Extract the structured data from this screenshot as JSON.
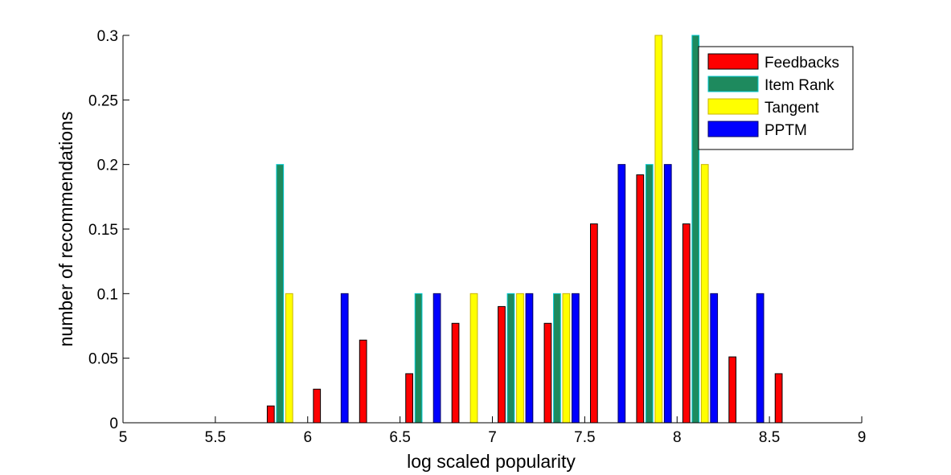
{
  "chart_data": {
    "type": "bar",
    "xlabel": "log scaled popularity",
    "ylabel": "number of recommendations",
    "xlim": [
      5,
      9
    ],
    "ylim": [
      0,
      0.3
    ],
    "x_ticks": [
      "5",
      "5.5",
      "6",
      "6.5",
      "7",
      "7.5",
      "8",
      "8.5",
      "9"
    ],
    "y_ticks": [
      "0",
      "0.05",
      "0.1",
      "0.15",
      "0.2",
      "0.25",
      "0.3"
    ],
    "grid": false,
    "legend_position": "top-right",
    "x": [
      5.125,
      5.375,
      5.625,
      5.875,
      6.125,
      6.375,
      6.625,
      6.875,
      7.125,
      7.375,
      7.625,
      7.875,
      8.125,
      8.375,
      8.625,
      8.875
    ],
    "series": [
      {
        "name": "Feedbacks",
        "color": "#ff0000",
        "edge": "#000000",
        "values": [
          0,
          0,
          0,
          0.013,
          0.026,
          0.064,
          0.038,
          0.077,
          0.09,
          0.077,
          0.154,
          0.192,
          0.154,
          0.051,
          0.038,
          0
        ]
      },
      {
        "name": "Item Rank",
        "color": "#1e8a5e",
        "edge": "#00c8d2",
        "values": [
          0,
          0,
          0,
          0.2,
          0,
          0,
          0.1,
          0,
          0.1,
          0.1,
          0,
          0.2,
          0.3,
          0,
          0,
          0
        ]
      },
      {
        "name": "Tangent",
        "color": "#ffff00",
        "edge": "#c8b400",
        "values": [
          0,
          0,
          0,
          0.1,
          0,
          0,
          0,
          0.1,
          0.1,
          0.1,
          0,
          0.3,
          0.2,
          0,
          0,
          0
        ]
      },
      {
        "name": "PPTM",
        "color": "#0000ff",
        "edge": "#000064",
        "values": [
          0,
          0,
          0,
          0,
          0.1,
          0,
          0.1,
          0,
          0.1,
          0.1,
          0.2,
          0.2,
          0.1,
          0.1,
          0,
          0
        ]
      }
    ]
  }
}
